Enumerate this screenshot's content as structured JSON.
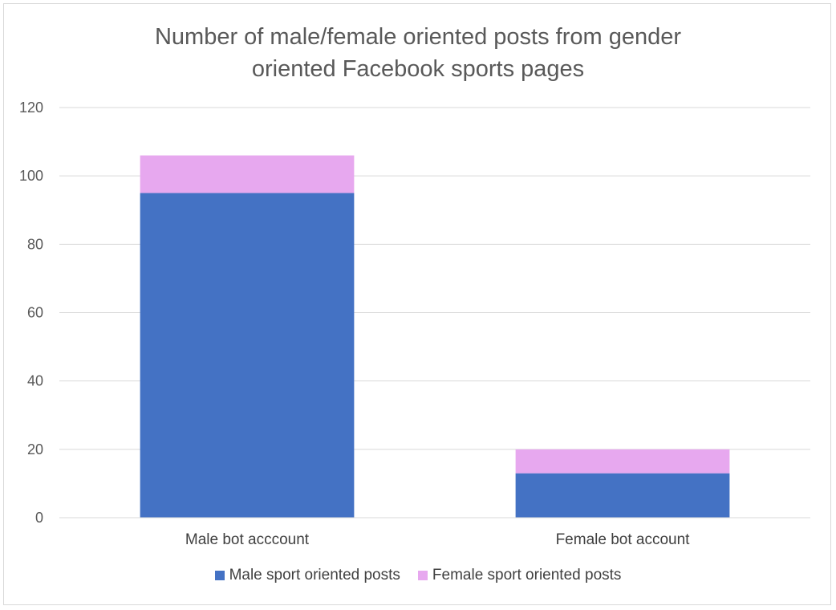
{
  "chart_data": {
    "type": "bar",
    "stacked": true,
    "title_lines": [
      "Number of male/female oriented posts from gender",
      "oriented Facebook sports pages"
    ],
    "categories": [
      "Male bot acccount",
      "Female bot account"
    ],
    "series": [
      {
        "name": "Male sport oriented posts",
        "values": [
          95,
          13
        ],
        "color": "#4472c4"
      },
      {
        "name": "Female sport oriented posts",
        "values": [
          11,
          7
        ],
        "color": "#e7a8ef"
      }
    ],
    "xlabel": "",
    "ylabel": "",
    "ylim": [
      0,
      120
    ],
    "yticks": [
      "0",
      "20",
      "40",
      "60",
      "80",
      "100",
      "120"
    ],
    "grid": true,
    "legend_position": "bottom"
  }
}
